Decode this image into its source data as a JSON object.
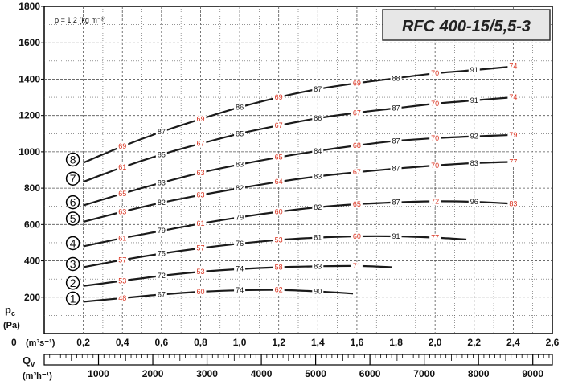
{
  "chart_data": {
    "type": "line",
    "title": "RFC 400-15/5,5-3",
    "density_note": "ρ = 1,2 (kg m⁻³)",
    "y_axis": {
      "label_main": "p",
      "label_sub": "c",
      "unit": "(Pa)",
      "range": [
        0,
        1800
      ],
      "ticks": [
        200,
        400,
        600,
        800,
        1000,
        1200,
        1400,
        1600,
        1800
      ]
    },
    "x_axis": {
      "zero_label": "0",
      "unit": "(m³s⁻¹)",
      "range": [
        0,
        2.6
      ],
      "ticks": [
        "0,2",
        "0,4",
        "0,6",
        "0,8",
        "1,0",
        "1,2",
        "1,4",
        "1,6",
        "1,8",
        "2,0",
        "2,2",
        "2,4",
        "2,6"
      ]
    },
    "x2_axis": {
      "label_main": "Q",
      "label_sub": "v",
      "unit": "(m³h⁻¹)",
      "ticks": [
        1000,
        2000,
        3000,
        4000,
        5000,
        6000,
        7000,
        8000,
        9000
      ]
    },
    "colors": {
      "curve": "#1a1a1a",
      "red_label": "#d9321f",
      "grid": "#555555"
    },
    "series": [
      {
        "name": "1",
        "x": [
          0.2,
          0.4,
          0.6,
          0.8,
          1.0,
          1.2,
          1.4,
          1.58
        ],
        "y": [
          175,
          195,
          215,
          230,
          238,
          240,
          232,
          220
        ],
        "labels": [
          {
            "x": 0.4,
            "t": "48",
            "c": "red"
          },
          {
            "x": 0.6,
            "t": "67",
            "c": "black"
          },
          {
            "x": 0.8,
            "t": "60",
            "c": "red"
          },
          {
            "x": 1.0,
            "t": "74",
            "c": "black"
          },
          {
            "x": 1.2,
            "t": "62",
            "c": "red"
          },
          {
            "x": 1.4,
            "t": "90",
            "c": "black"
          }
        ]
      },
      {
        "name": "2",
        "x": [
          0.2,
          0.4,
          0.6,
          0.8,
          1.0,
          1.2,
          1.4,
          1.6,
          1.78
        ],
        "y": [
          262,
          290,
          318,
          340,
          355,
          365,
          370,
          372,
          365
        ],
        "labels": [
          {
            "x": 0.4,
            "t": "53",
            "c": "red"
          },
          {
            "x": 0.6,
            "t": "72",
            "c": "black"
          },
          {
            "x": 0.8,
            "t": "53",
            "c": "red"
          },
          {
            "x": 1.0,
            "t": "74",
            "c": "black"
          },
          {
            "x": 1.2,
            "t": "58",
            "c": "red"
          },
          {
            "x": 1.4,
            "t": "83",
            "c": "black"
          },
          {
            "x": 1.6,
            "t": "71",
            "c": "red"
          }
        ]
      },
      {
        "name": "3",
        "x": [
          0.2,
          0.4,
          0.6,
          0.8,
          1.0,
          1.2,
          1.4,
          1.6,
          1.8,
          2.0,
          2.16
        ],
        "y": [
          365,
          405,
          440,
          470,
          495,
          515,
          528,
          535,
          535,
          528,
          518
        ],
        "labels": [
          {
            "x": 0.4,
            "t": "57",
            "c": "red"
          },
          {
            "x": 0.6,
            "t": "75",
            "c": "black"
          },
          {
            "x": 0.8,
            "t": "57",
            "c": "red"
          },
          {
            "x": 1.0,
            "t": "76",
            "c": "black"
          },
          {
            "x": 1.2,
            "t": "53",
            "c": "red"
          },
          {
            "x": 1.4,
            "t": "81",
            "c": "black"
          },
          {
            "x": 1.6,
            "t": "60",
            "c": "red"
          },
          {
            "x": 1.8,
            "t": "91",
            "c": "black"
          },
          {
            "x": 2.0,
            "t": "77",
            "c": "red"
          }
        ]
      },
      {
        "name": "4",
        "x": [
          0.2,
          0.4,
          0.6,
          0.8,
          1.0,
          1.2,
          1.4,
          1.6,
          1.8,
          2.0,
          2.2,
          2.4
        ],
        "y": [
          480,
          525,
          565,
          605,
          640,
          670,
          695,
          712,
          722,
          728,
          725,
          715
        ],
        "labels": [
          {
            "x": 0.4,
            "t": "61",
            "c": "red"
          },
          {
            "x": 0.6,
            "t": "79",
            "c": "black"
          },
          {
            "x": 0.8,
            "t": "61",
            "c": "red"
          },
          {
            "x": 1.0,
            "t": "79",
            "c": "black"
          },
          {
            "x": 1.2,
            "t": "60",
            "c": "red"
          },
          {
            "x": 1.4,
            "t": "82",
            "c": "black"
          },
          {
            "x": 1.6,
            "t": "65",
            "c": "red"
          },
          {
            "x": 1.8,
            "t": "87",
            "c": "black"
          },
          {
            "x": 2.0,
            "t": "72",
            "c": "red"
          },
          {
            "x": 2.2,
            "t": "96",
            "c": "black"
          },
          {
            "x": 2.4,
            "t": "83",
            "c": "red"
          }
        ]
      },
      {
        "name": "5",
        "x": [
          0.2,
          0.4,
          0.6,
          0.8,
          1.0,
          1.2,
          1.4,
          1.6,
          1.8,
          2.0,
          2.2,
          2.4
        ],
        "y": [
          615,
          670,
          720,
          762,
          800,
          835,
          865,
          888,
          908,
          925,
          938,
          945
        ],
        "labels": [
          {
            "x": 0.4,
            "t": "63",
            "c": "red"
          },
          {
            "x": 0.6,
            "t": "82",
            "c": "black"
          },
          {
            "x": 0.8,
            "t": "63",
            "c": "red"
          },
          {
            "x": 1.0,
            "t": "82",
            "c": "black"
          },
          {
            "x": 1.2,
            "t": "64",
            "c": "red"
          },
          {
            "x": 1.4,
            "t": "83",
            "c": "black"
          },
          {
            "x": 1.6,
            "t": "67",
            "c": "red"
          },
          {
            "x": 1.8,
            "t": "87",
            "c": "black"
          },
          {
            "x": 2.0,
            "t": "70",
            "c": "red"
          },
          {
            "x": 2.2,
            "t": "83",
            "c": "black"
          },
          {
            "x": 2.4,
            "t": "77",
            "c": "red"
          }
        ]
      },
      {
        "name": "6",
        "x": [
          0.2,
          0.4,
          0.6,
          0.8,
          1.0,
          1.2,
          1.4,
          1.6,
          1.8,
          2.0,
          2.2,
          2.4
        ],
        "y": [
          705,
          770,
          830,
          885,
          930,
          970,
          1005,
          1035,
          1060,
          1075,
          1085,
          1093
        ],
        "labels": [
          {
            "x": 0.4,
            "t": "65",
            "c": "red"
          },
          {
            "x": 0.6,
            "t": "83",
            "c": "black"
          },
          {
            "x": 0.8,
            "t": "63",
            "c": "red"
          },
          {
            "x": 1.0,
            "t": "83",
            "c": "black"
          },
          {
            "x": 1.2,
            "t": "65",
            "c": "red"
          },
          {
            "x": 1.4,
            "t": "84",
            "c": "black"
          },
          {
            "x": 1.6,
            "t": "68",
            "c": "red"
          },
          {
            "x": 1.8,
            "t": "87",
            "c": "black"
          },
          {
            "x": 2.0,
            "t": "70",
            "c": "red"
          },
          {
            "x": 2.2,
            "t": "92",
            "c": "black"
          },
          {
            "x": 2.4,
            "t": "79",
            "c": "red"
          }
        ]
      },
      {
        "name": "7",
        "x": [
          0.2,
          0.4,
          0.6,
          0.8,
          1.0,
          1.2,
          1.4,
          1.6,
          1.8,
          2.0,
          2.2,
          2.4
        ],
        "y": [
          835,
          915,
          985,
          1045,
          1100,
          1145,
          1185,
          1215,
          1240,
          1265,
          1283,
          1300
        ],
        "labels": [
          {
            "x": 0.4,
            "t": "61",
            "c": "red"
          },
          {
            "x": 0.6,
            "t": "85",
            "c": "black"
          },
          {
            "x": 0.8,
            "t": "67",
            "c": "red"
          },
          {
            "x": 1.0,
            "t": "85",
            "c": "black"
          },
          {
            "x": 1.2,
            "t": "67",
            "c": "red"
          },
          {
            "x": 1.4,
            "t": "86",
            "c": "black"
          },
          {
            "x": 1.6,
            "t": "67",
            "c": "red"
          },
          {
            "x": 1.8,
            "t": "87",
            "c": "black"
          },
          {
            "x": 2.0,
            "t": "70",
            "c": "red"
          },
          {
            "x": 2.2,
            "t": "91",
            "c": "black"
          },
          {
            "x": 2.4,
            "t": "74",
            "c": "red"
          }
        ]
      },
      {
        "name": "8",
        "x": [
          0.2,
          0.4,
          0.6,
          0.8,
          1.0,
          1.2,
          1.4,
          1.6,
          1.8,
          2.0,
          2.2,
          2.4
        ],
        "y": [
          940,
          1030,
          1110,
          1180,
          1245,
          1300,
          1345,
          1378,
          1405,
          1432,
          1450,
          1470
        ],
        "labels": [
          {
            "x": 0.4,
            "t": "69",
            "c": "red"
          },
          {
            "x": 0.6,
            "t": "87",
            "c": "black"
          },
          {
            "x": 0.8,
            "t": "69",
            "c": "red"
          },
          {
            "x": 1.0,
            "t": "86",
            "c": "black"
          },
          {
            "x": 1.2,
            "t": "69",
            "c": "red"
          },
          {
            "x": 1.4,
            "t": "87",
            "c": "black"
          },
          {
            "x": 1.6,
            "t": "69",
            "c": "red"
          },
          {
            "x": 1.8,
            "t": "88",
            "c": "black"
          },
          {
            "x": 2.0,
            "t": "70",
            "c": "red"
          },
          {
            "x": 2.2,
            "t": "91",
            "c": "black"
          },
          {
            "x": 2.4,
            "t": "74",
            "c": "red"
          }
        ]
      }
    ]
  }
}
